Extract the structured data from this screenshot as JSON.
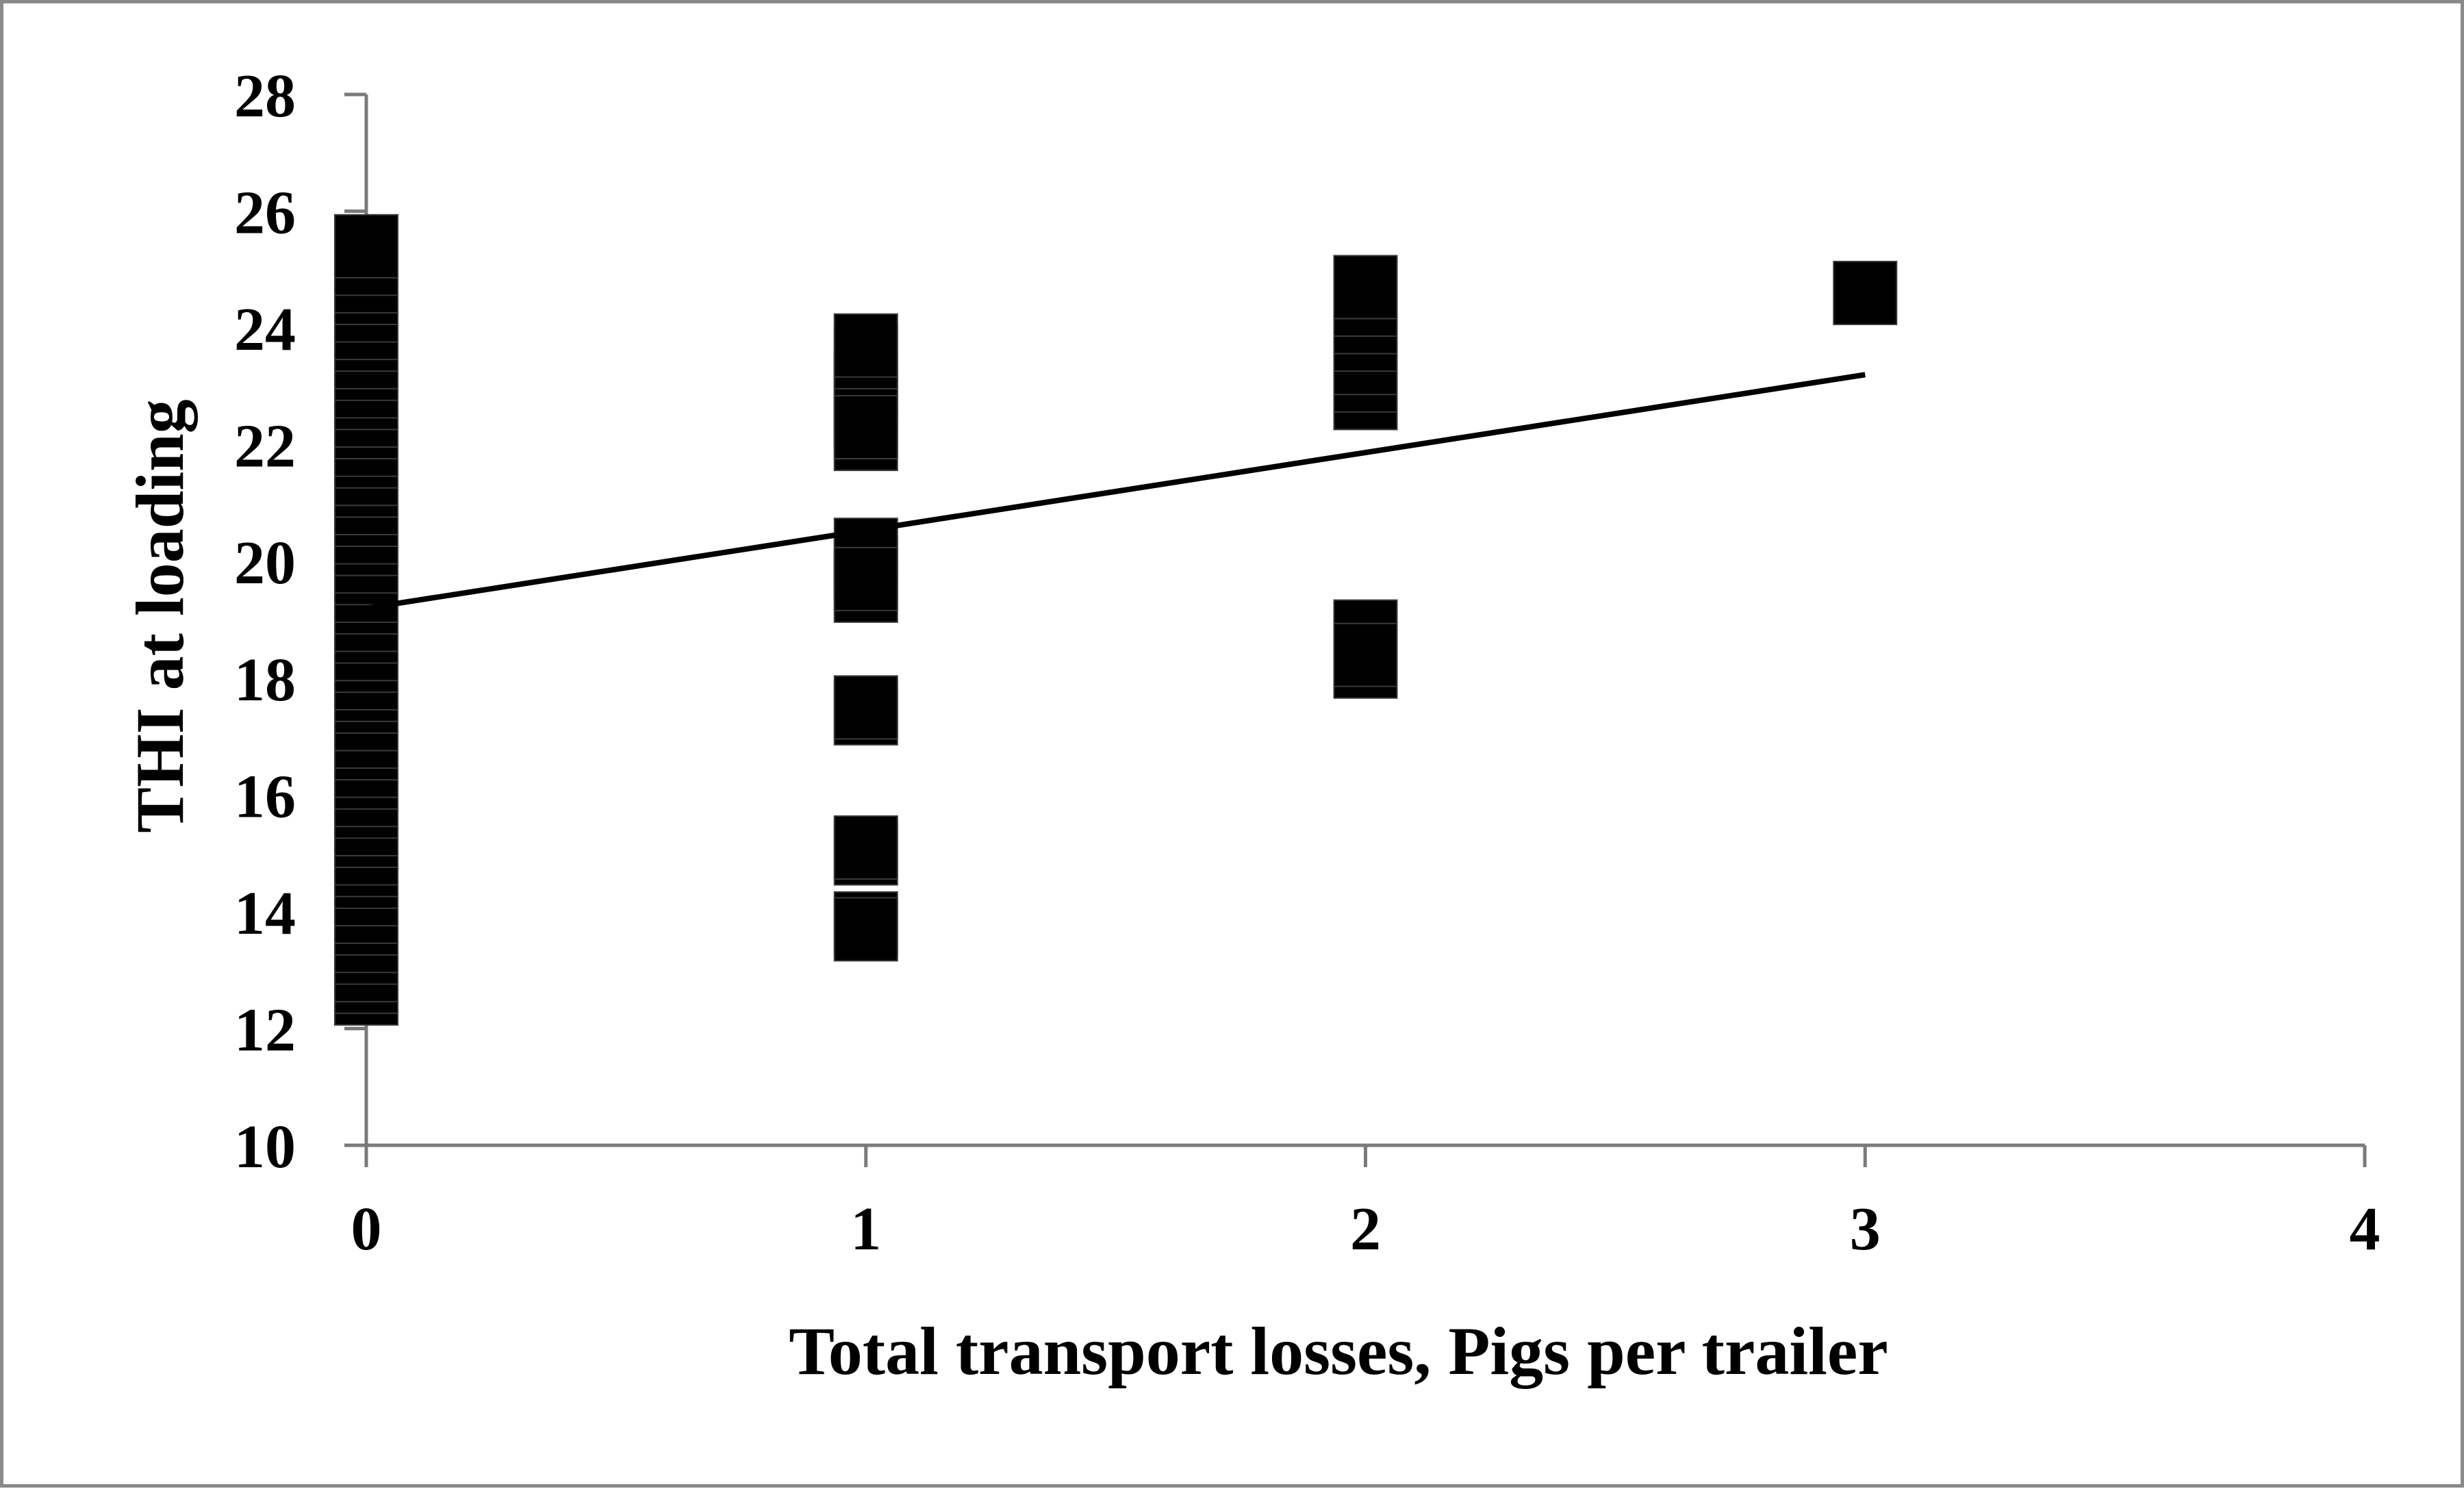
{
  "chart_data": {
    "type": "scatter",
    "xlabel": "Total transport losses, Pigs per trailer",
    "ylabel": "THI at loading",
    "xlim": [
      0,
      4
    ],
    "ylim": [
      10,
      28
    ],
    "x_ticks": [
      "0",
      "1",
      "2",
      "3",
      "4"
    ],
    "y_ticks": [
      "10",
      "12",
      "14",
      "16",
      "18",
      "20",
      "22",
      "24",
      "26",
      "28"
    ],
    "grid": false,
    "legend": "none",
    "marker": "square",
    "marker_color": "#000000",
    "series": [
      {
        "x": [
          0,
          0,
          0,
          0,
          0,
          0,
          0,
          0,
          0,
          0,
          0,
          0,
          0,
          0,
          0,
          0,
          0,
          0,
          0,
          0,
          0,
          0,
          0,
          0,
          0,
          0,
          0,
          0,
          0,
          0,
          0,
          0,
          0,
          0,
          0,
          0,
          0,
          0,
          0,
          0,
          0,
          0,
          0,
          0,
          0,
          0,
          0,
          0,
          0,
          0,
          0,
          0,
          1,
          1,
          1,
          1,
          1,
          1,
          1,
          1,
          1,
          1,
          1,
          1,
          1,
          1,
          1,
          1,
          1,
          2,
          2,
          2,
          2,
          2,
          2,
          2,
          2,
          2,
          2,
          2,
          3
        ],
        "y": [
          12.6,
          12.8,
          13.0,
          13.3,
          13.5,
          13.8,
          14.0,
          14.3,
          14.6,
          14.8,
          15.0,
          15.3,
          15.5,
          15.8,
          16.0,
          16.3,
          16.5,
          16.8,
          17.0,
          17.3,
          17.6,
          17.8,
          18.0,
          18.3,
          18.5,
          18.8,
          19.0,
          19.3,
          19.5,
          19.8,
          20.0,
          20.3,
          20.5,
          20.8,
          21.0,
          21.3,
          21.5,
          21.8,
          22.0,
          22.3,
          22.5,
          22.8,
          23.0,
          23.3,
          23.5,
          23.8,
          24.0,
          24.3,
          24.6,
          24.8,
          25.1,
          25.4,
          13.8,
          15.0,
          17.4,
          19.5,
          19.9,
          20.2,
          22.1,
          22.4,
          22.8,
          23.1,
          23.5,
          23.7,
          13.7,
          15.1,
          17.5,
          19.7,
          22.3,
          18.2,
          18.5,
          18.8,
          22.8,
          23.1,
          23.4,
          23.8,
          24.1,
          24.4,
          24.7,
          18.4,
          24.6
        ]
      }
    ],
    "trendline": {
      "x": [
        0,
        3
      ],
      "y": [
        19.2,
        23.2
      ]
    }
  }
}
